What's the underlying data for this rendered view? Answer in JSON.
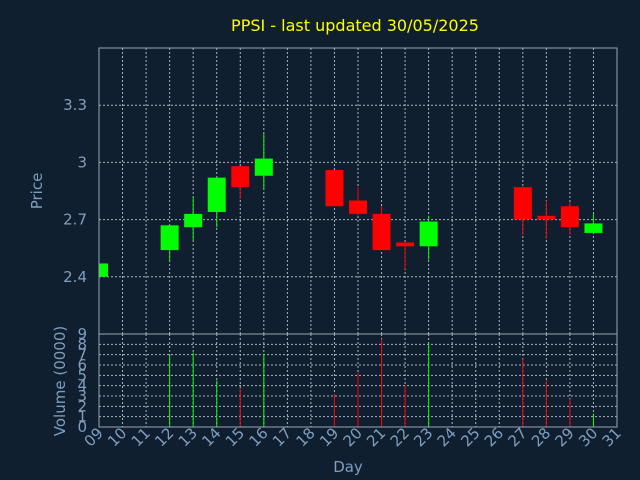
{
  "chart_data": {
    "type": "candlestick",
    "title": "PPSI - last updated 30/05/2025",
    "xlabel": "Day",
    "price_panel": {
      "ylabel": "Price",
      "ylim": [
        2.1,
        3.6
      ],
      "yticks": [
        2.4,
        2.7,
        3,
        3.3
      ],
      "ytick_labels": [
        "2.4",
        "2.7",
        "3",
        "3.3"
      ]
    },
    "volume_panel": {
      "ylabel": "Volume (0000)",
      "ylim": [
        0,
        9
      ],
      "yticks": [
        0,
        1,
        2,
        3,
        4,
        5,
        6,
        7,
        8,
        9
      ],
      "ytick_labels": [
        "0",
        "1",
        "2",
        "3",
        "4",
        "5",
        "6",
        "7",
        "8",
        "9"
      ]
    },
    "x_ticks": [
      "09",
      "10",
      "11",
      "12",
      "13",
      "14",
      "15",
      "16",
      "17",
      "18",
      "19",
      "20",
      "21",
      "22",
      "23",
      "24",
      "25",
      "26",
      "27",
      "28",
      "29",
      "30",
      "31"
    ],
    "candles": [
      {
        "day": 9,
        "open": 2.4,
        "high": 2.47,
        "low": 2.4,
        "close": 2.47,
        "volume": 0
      },
      {
        "day": 12,
        "open": 2.54,
        "high": 2.67,
        "low": 2.48,
        "close": 2.67,
        "volume": 7.0
      },
      {
        "day": 13,
        "open": 2.66,
        "high": 2.82,
        "low": 2.59,
        "close": 2.73,
        "volume": 7.2
      },
      {
        "day": 14,
        "open": 2.74,
        "high": 2.92,
        "low": 2.66,
        "close": 2.92,
        "volume": 4.5
      },
      {
        "day": 15,
        "open": 2.98,
        "high": 2.98,
        "low": 2.81,
        "close": 2.87,
        "volume": 3.8
      },
      {
        "day": 16,
        "open": 2.93,
        "high": 3.15,
        "low": 2.86,
        "close": 3.02,
        "volume": 7.1
      },
      {
        "day": 19,
        "open": 2.96,
        "high": 2.96,
        "low": 2.77,
        "close": 2.77,
        "volume": 3.2
      },
      {
        "day": 20,
        "open": 2.8,
        "high": 2.87,
        "low": 2.72,
        "close": 2.73,
        "volume": 5.3
      },
      {
        "day": 21,
        "open": 2.73,
        "high": 2.77,
        "low": 2.54,
        "close": 2.54,
        "volume": 8.5
      },
      {
        "day": 22,
        "open": 2.58,
        "high": 2.58,
        "low": 2.44,
        "close": 2.56,
        "volume": 4.0
      },
      {
        "day": 23,
        "open": 2.56,
        "high": 2.72,
        "low": 2.49,
        "close": 2.69,
        "volume": 8.1
      },
      {
        "day": 27,
        "open": 2.87,
        "high": 2.87,
        "low": 2.62,
        "close": 2.7,
        "volume": 6.6
      },
      {
        "day": 28,
        "open": 2.72,
        "high": 2.8,
        "low": 2.6,
        "close": 2.7,
        "volume": 4.5
      },
      {
        "day": 29,
        "open": 2.77,
        "high": 2.79,
        "low": 2.62,
        "close": 2.66,
        "volume": 2.7
      },
      {
        "day": 30,
        "open": 2.63,
        "high": 2.73,
        "low": 2.63,
        "close": 2.68,
        "volume": 1.3
      }
    ],
    "colors": {
      "background": "#0f1f30",
      "up": "#00ff00",
      "down": "#ff0000",
      "title": "#ffff00",
      "axis_text": "#7f9fbf",
      "grid": "#c8d0d8",
      "frame": "#9aa6b2"
    },
    "grid": true
  }
}
